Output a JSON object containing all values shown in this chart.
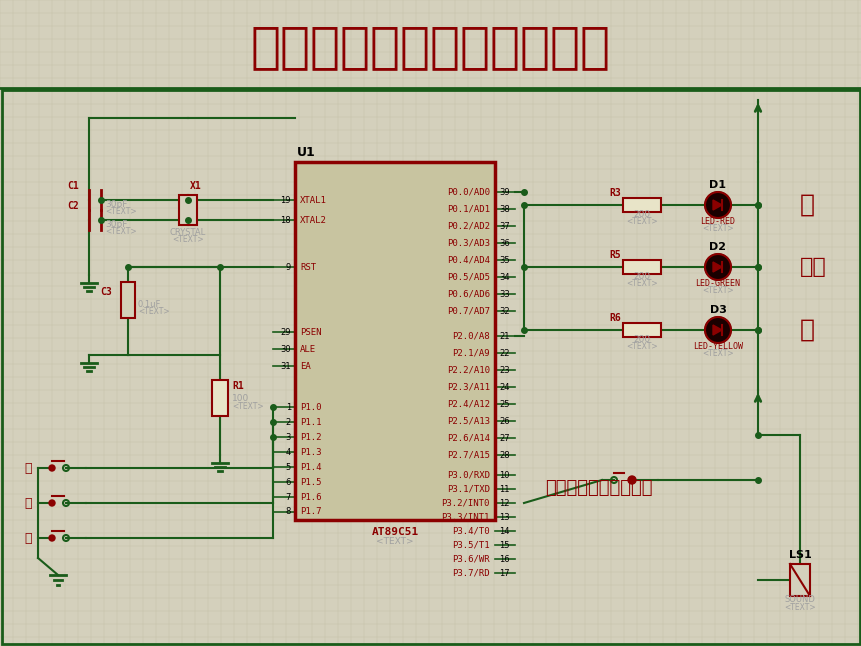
{
  "title": "基于单片机的防盗报警系统",
  "title_color": "#8B0000",
  "title_fontsize": 36,
  "bg_color": "#D4D0BC",
  "grid_color": "#C5C2A8",
  "line_color": "#1A5C1A",
  "dark_red": "#8B0000",
  "mcu_fill": "#C8C4A0",
  "mcu_border": "#8B0000",
  "text_gray": "#A0A0A0",
  "note_text": "按键代替红外感应模块",
  "note_color": "#8B0000",
  "right_label1": "紧",
  "right_label2": "红外",
  "right_label3": "布"
}
